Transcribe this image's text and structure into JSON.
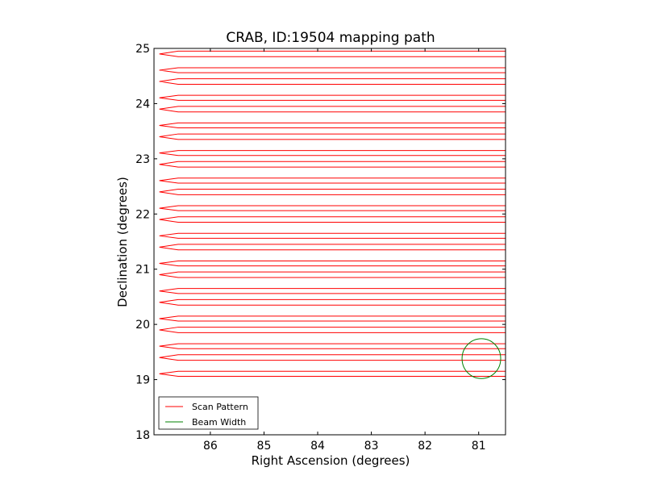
{
  "chart_data": {
    "type": "line",
    "title": "CRAB, ID:19504 mapping path",
    "xlabel": "Right Ascension (degrees)",
    "ylabel": "Declination (degrees)",
    "xlim": [
      87.05,
      80.5
    ],
    "ylim": [
      18,
      25
    ],
    "x_direction": "decreasing",
    "xticks": [
      86,
      85,
      84,
      83,
      82,
      81
    ],
    "yticks": [
      18,
      19,
      20,
      21,
      22,
      23,
      24,
      25
    ],
    "grid": false,
    "legend_position": "lower-left",
    "series": [
      {
        "name": "Scan Pattern",
        "color": "#ff0000",
        "x_right": 80.5,
        "x_left": 86.6,
        "x_tip": 86.95,
        "rows": [
          19.06,
          19.15,
          19.35,
          19.45,
          19.56,
          19.65,
          19.85,
          19.95,
          20.06,
          20.15,
          20.35,
          20.45,
          20.56,
          20.65,
          20.85,
          20.95,
          21.06,
          21.15,
          21.35,
          21.45,
          21.56,
          21.65,
          21.85,
          21.95,
          22.06,
          22.15,
          22.35,
          22.45,
          22.56,
          22.65,
          22.85,
          22.95,
          23.06,
          23.15,
          23.35,
          23.45,
          23.56,
          23.65,
          23.85,
          23.95,
          24.06,
          24.15,
          24.35,
          24.45,
          24.56,
          24.65,
          24.85,
          24.95
        ]
      },
      {
        "name": "Beam Width",
        "color": "#008000",
        "center_x": 80.95,
        "center_y": 19.38,
        "radius_deg": 0.36
      }
    ]
  }
}
